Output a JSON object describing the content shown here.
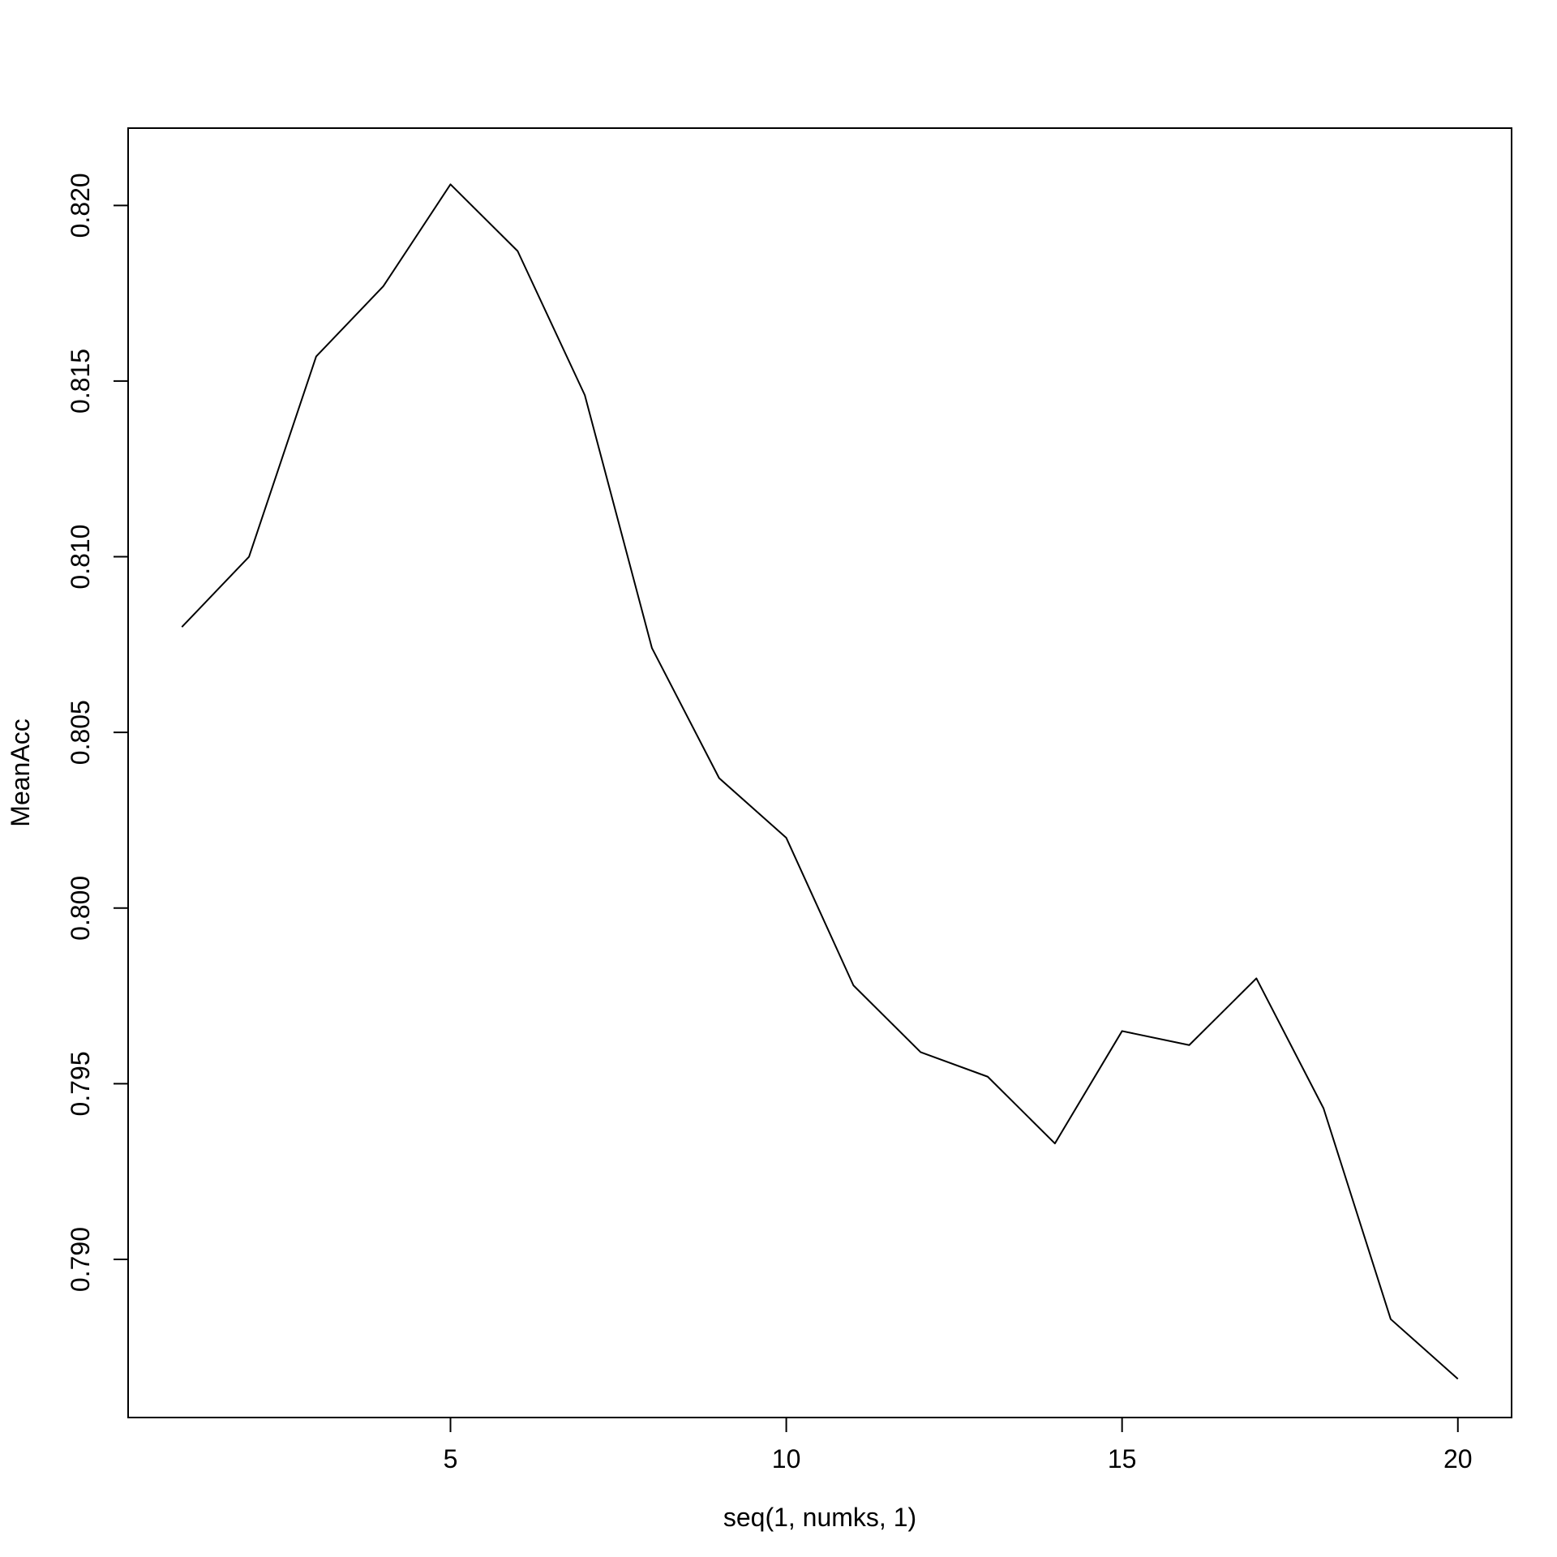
{
  "chart_data": {
    "type": "line",
    "title": "",
    "xlabel": "seq(1, numks, 1)",
    "ylabel": "MeanAcc",
    "xlim": [
      0.2,
      20.8
    ],
    "ylim": [
      0.7855,
      0.8222
    ],
    "xticks": [
      5,
      10,
      15,
      20
    ],
    "xtick_labels": [
      "5",
      "10",
      "15",
      "20"
    ],
    "yticks": [
      0.79,
      0.795,
      0.8,
      0.805,
      0.81,
      0.815,
      0.82
    ],
    "ytick_labels": [
      "0.790",
      "0.795",
      "0.800",
      "0.805",
      "0.810",
      "0.815",
      "0.820"
    ],
    "grid": false,
    "legend": "none",
    "line_color": "#000000",
    "x": [
      1,
      2,
      3,
      4,
      5,
      6,
      7,
      8,
      9,
      10,
      11,
      12,
      13,
      14,
      15,
      16,
      17,
      18,
      19,
      20
    ],
    "series": [
      {
        "values": [
          0.808,
          0.81,
          0.8157,
          0.8177,
          0.8206,
          0.8187,
          0.8146,
          0.8074,
          0.8037,
          0.802,
          0.7978,
          0.7959,
          0.7952,
          0.7933,
          0.7965,
          0.7961,
          0.798,
          0.7943,
          0.7883,
          0.7866
        ]
      }
    ]
  }
}
